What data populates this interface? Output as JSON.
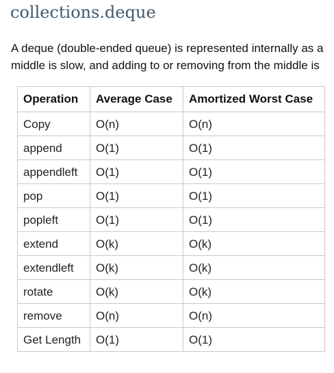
{
  "heading": "collections.deque",
  "intro": {
    "line1": "A deque (double-ended queue) is represented internally as a",
    "line2": "middle is slow, and adding to or removing from the middle is"
  },
  "table": {
    "headers": [
      "Operation",
      "Average Case",
      "Amortized Worst Case"
    ],
    "rows": [
      [
        "Copy",
        "O(n)",
        "O(n)"
      ],
      [
        "append",
        "O(1)",
        "O(1)"
      ],
      [
        "appendleft",
        "O(1)",
        "O(1)"
      ],
      [
        "pop",
        "O(1)",
        "O(1)"
      ],
      [
        "popleft",
        "O(1)",
        "O(1)"
      ],
      [
        "extend",
        "O(k)",
        "O(k)"
      ],
      [
        "extendleft",
        "O(k)",
        "O(k)"
      ],
      [
        "rotate",
        "O(k)",
        "O(k)"
      ],
      [
        "remove",
        "O(n)",
        "O(n)"
      ],
      [
        "Get Length",
        "O(1)",
        "O(1)"
      ]
    ]
  }
}
